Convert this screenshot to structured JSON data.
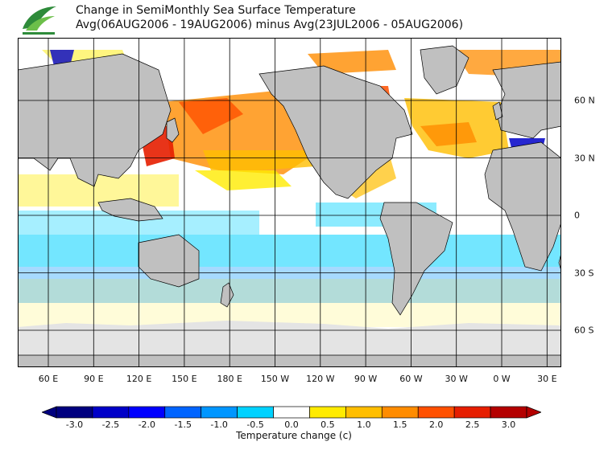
{
  "title": {
    "line1": "Change in SemiMonthly Sea Surface Temperature",
    "line2": "Avg(06AUG2006 - 19AUG2006) minus Avg(23JUL2006 - 05AUG2006)"
  },
  "logo": {
    "icon": "leaf-logo-icon",
    "color": "#2e8b3a"
  },
  "map": {
    "projection": "cylindrical",
    "lon_labels": [
      "60 E",
      "90 E",
      "120 E",
      "150 E",
      "180 E",
      "150 W",
      "120 W",
      "90 W",
      "60 W",
      "30 W",
      "0 W",
      "30 E"
    ],
    "lat_labels": [
      "60 N",
      "30 N",
      "0",
      "30 S",
      "60 S"
    ],
    "land_color": "#c0c0c0",
    "ice_color": "#e4e4e4",
    "grid": true
  },
  "colorbar": {
    "title": "Temperature change  (c)",
    "ticks": [
      "-3.0",
      "-2.5",
      "-2.0",
      "-1.5",
      "-1.0",
      "-0.5",
      "0.0",
      "0.5",
      "1.0",
      "1.5",
      "2.0",
      "2.5",
      "3.0"
    ],
    "colors": [
      "#00007f",
      "#0000c8",
      "#0000ff",
      "#0064ff",
      "#0096ff",
      "#00d2ff",
      "#ffffff",
      "#ffeb00",
      "#ffbe00",
      "#ff8c00",
      "#ff5000",
      "#e61e00",
      "#b40000"
    ]
  }
}
